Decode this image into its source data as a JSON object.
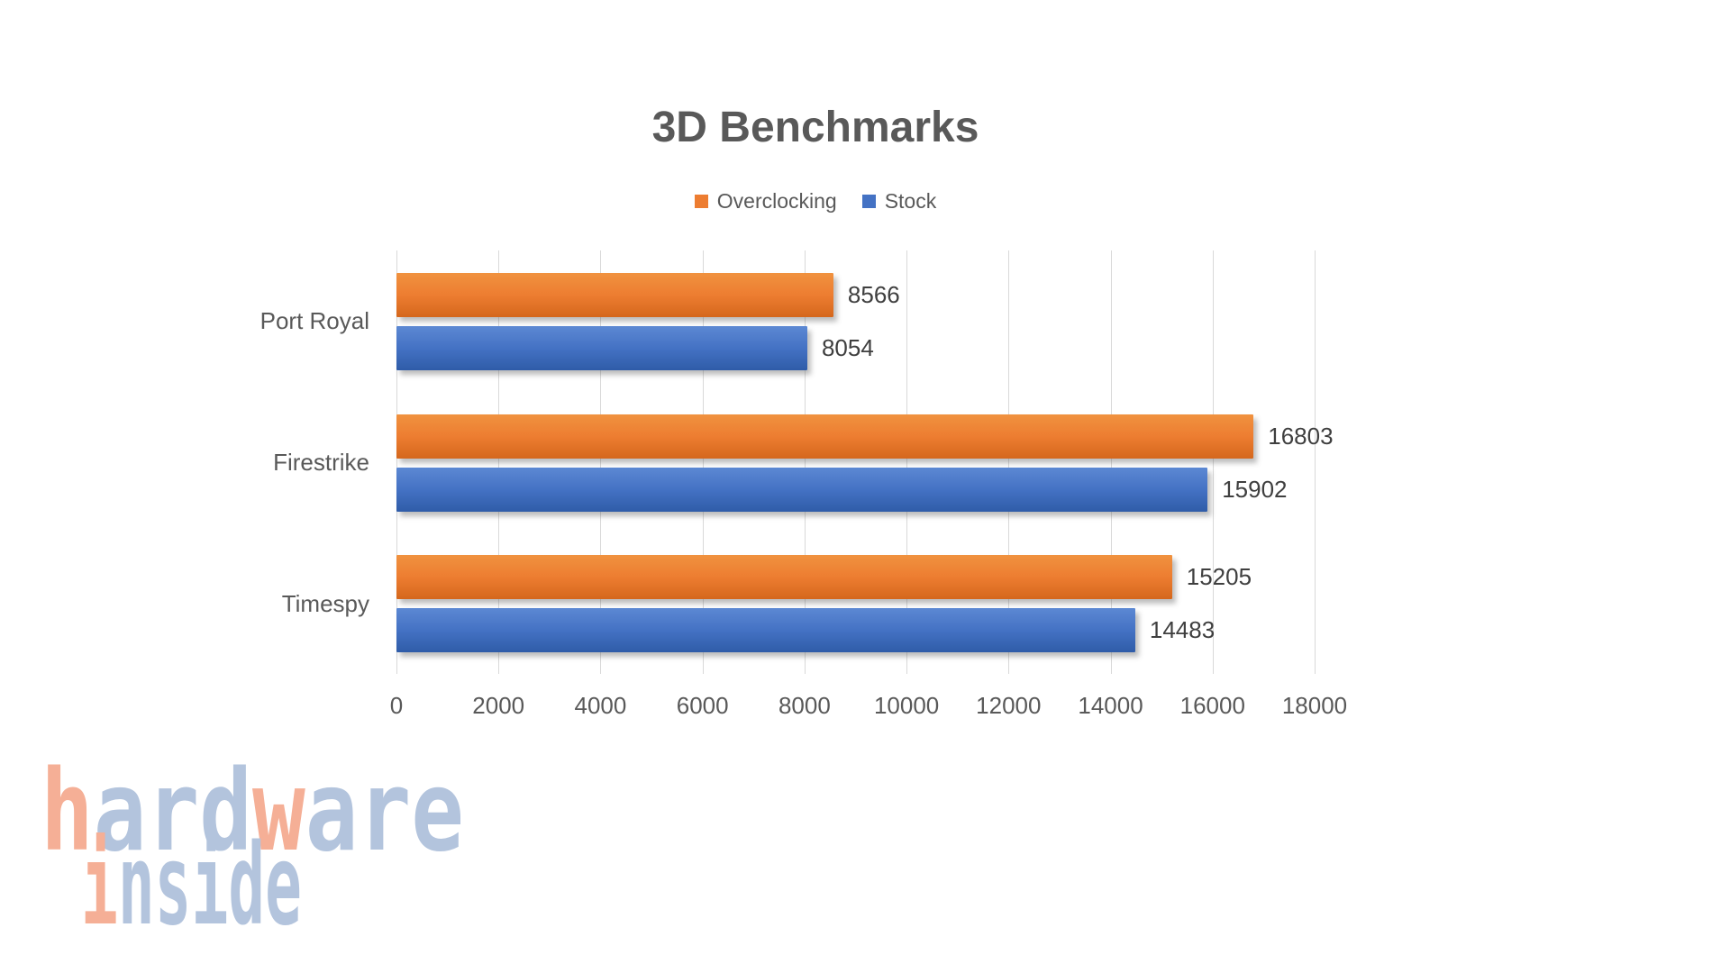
{
  "chart_data": {
    "type": "bar",
    "orientation": "horizontal",
    "title": "3D Benchmarks",
    "title_color": "#595959",
    "categories": [
      "Port Royal",
      "Firestrike",
      "Timespy"
    ],
    "series": [
      {
        "name": "Overclocking",
        "color": "#ED7D31",
        "color_light": "#F0923F",
        "color_dark": "#D5671C",
        "values": [
          8566,
          16803,
          15205
        ]
      },
      {
        "name": "Stock",
        "color": "#4472C4",
        "color_light": "#5C88D3",
        "color_dark": "#2F5CA8",
        "values": [
          8054,
          15902,
          14483
        ]
      }
    ],
    "value_labels": [
      [
        "8566",
        "16803",
        "15205"
      ],
      [
        "8054",
        "15902",
        "14483"
      ]
    ],
    "xlabel": "",
    "ylabel": "",
    "xlim": [
      0,
      18000
    ],
    "x_ticks": [
      0,
      2000,
      4000,
      6000,
      8000,
      10000,
      12000,
      14000,
      16000,
      18000
    ],
    "grid": true,
    "gridline_color": "#D9D9D9",
    "legend_position": "top",
    "axis_text_color": "#595959",
    "data_label_color": "#3F3F3F",
    "legend_text_color": "#595959"
  },
  "logo": {
    "name": "hardware inside",
    "colors": {
      "salmon": "#F5AF96",
      "blue": "#B3C4DD"
    },
    "line1": [
      {
        "text": "h",
        "color": "salmon"
      },
      {
        "text": "ard",
        "color": "blue"
      },
      {
        "text": "w",
        "color": "salmon"
      },
      {
        "text": "are",
        "color": "blue"
      }
    ],
    "line2": [
      {
        "text": "i",
        "color": "salmon"
      },
      {
        "text": "nside",
        "color": "blue"
      }
    ]
  }
}
